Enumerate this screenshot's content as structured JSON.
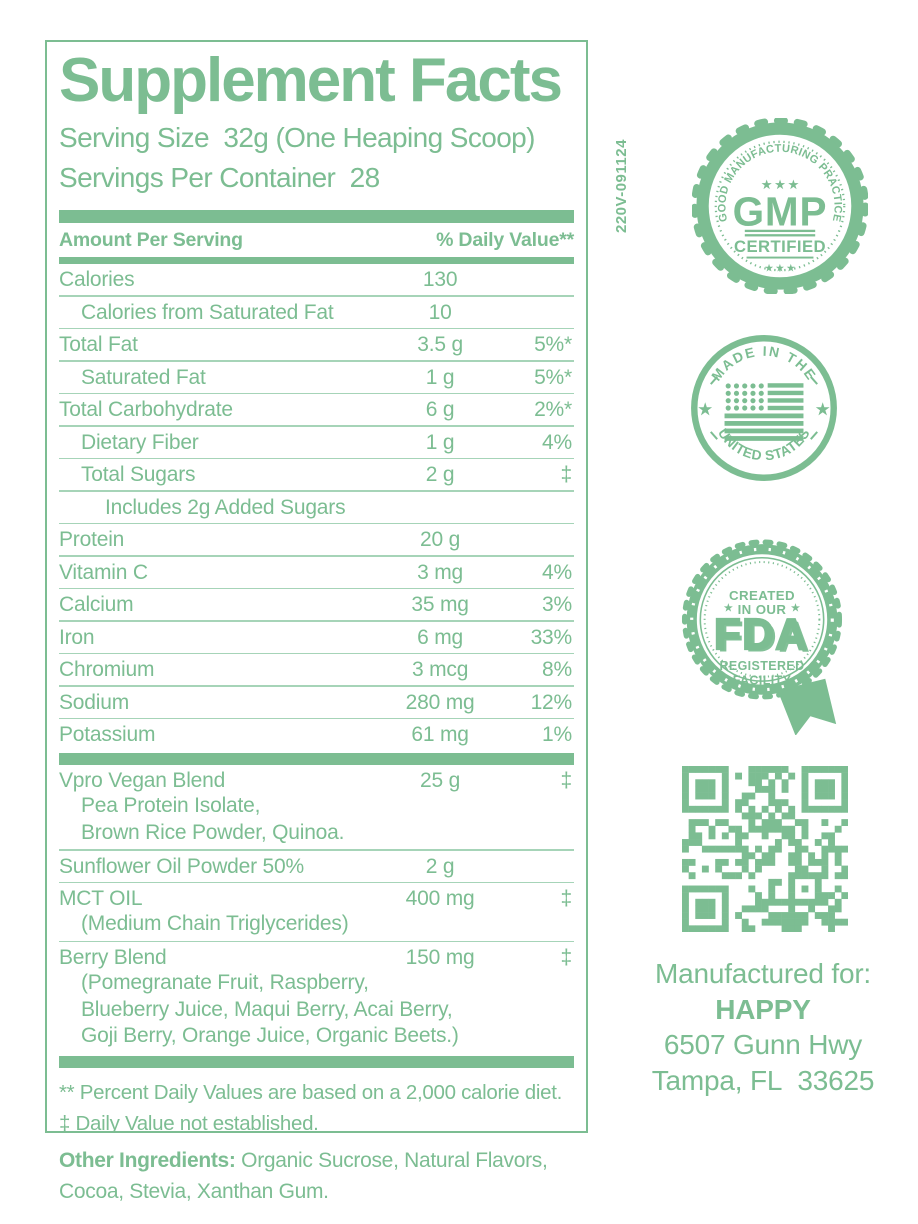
{
  "colors": {
    "green": "#7cbd92",
    "green_light": "#a6d4b8"
  },
  "glyphs": {
    "stars3": "★ ★ ★",
    "star": "★"
  },
  "label": {
    "title": "Supplement Facts",
    "serving_size_line": "Serving Size  32g (One Heaping Scoop)",
    "servings_line": "Servings Per Container  28",
    "header": {
      "left": "Amount Per Serving",
      "right": "% Daily Value**"
    },
    "rows": [
      {
        "name": "Calories",
        "amount": "130",
        "dv": "",
        "indent": 0,
        "sep": "hair"
      },
      {
        "name": "Calories from Saturated Fat",
        "amount": "10",
        "dv": "",
        "indent": 1,
        "sep": "hair"
      },
      {
        "name": "Total Fat",
        "amount": "3.5 g",
        "dv": "5%*",
        "indent": 0,
        "sep": "hair"
      },
      {
        "name": "Saturated Fat",
        "amount": "1 g",
        "dv": "5%*",
        "indent": 1,
        "sep": "hair"
      },
      {
        "name": "Total Carbohydrate",
        "amount": "6 g",
        "dv": "2%*",
        "indent": 0,
        "sep": "hair"
      },
      {
        "name": "Dietary Fiber",
        "amount": "1 g",
        "dv": "4%",
        "indent": 1,
        "sep": "hair"
      },
      {
        "name": "Total Sugars",
        "amount": "2 g",
        "dv": "‡",
        "indent": 1,
        "sep": "hair"
      },
      {
        "name": "Includes 2g Added Sugars",
        "amount": "",
        "dv": "",
        "indent": 2,
        "sep": "hair"
      },
      {
        "name": "Protein",
        "amount": "20 g",
        "dv": "",
        "indent": 0,
        "sep": "hair"
      },
      {
        "name": "Vitamin C",
        "amount": "3 mg",
        "dv": "4%",
        "indent": 0,
        "sep": "hair"
      },
      {
        "name": "Calcium",
        "amount": "35 mg",
        "dv": "3%",
        "indent": 0,
        "sep": "hair"
      },
      {
        "name": "Iron",
        "amount": "6 mg",
        "dv": "33%",
        "indent": 0,
        "sep": "hair"
      },
      {
        "name": "Chromium",
        "amount": "3 mcg",
        "dv": "8%",
        "indent": 0,
        "sep": "hair"
      },
      {
        "name": "Sodium",
        "amount": "280 mg",
        "dv": "12%",
        "indent": 0,
        "sep": "hair"
      },
      {
        "name": "Potassium",
        "amount": "61 mg",
        "dv": "1%",
        "indent": 0,
        "sep": "thick"
      },
      {
        "name": "Vpro Vegan Blend",
        "amount": "25 g",
        "dv": "‡",
        "indent": 0,
        "sub": [
          "Pea Protein Isolate,",
          "Brown Rice Powder, Quinoa."
        ],
        "sep": "hair"
      },
      {
        "name": "Sunflower Oil Powder 50%",
        "amount": "2 g",
        "dv": "",
        "indent": 0,
        "sep": "hair"
      },
      {
        "name": "MCT OIL",
        "amount": "400 mg",
        "dv": "‡",
        "indent": 0,
        "sub": [
          "(Medium Chain Triglycerides)"
        ],
        "sep": "hair"
      },
      {
        "name": "Berry Blend",
        "amount": "150 mg",
        "dv": "‡",
        "indent": 0,
        "sub": [
          "(Pomegranate Fruit, Raspberry,",
          "Blueberry Juice, Maqui Berry, Acai Berry,",
          "Goji Berry, Orange Juice, Organic Beets.)"
        ],
        "sep": "thick"
      }
    ],
    "footnotes": [
      "** Percent Daily Values are based on a 2,000 calorie diet.",
      "‡ Daily Value not established."
    ],
    "other_ingredients": {
      "label": "Other Ingredients:",
      "text": " Organic Sucrose, Natural Flavors, Cocoa, Stevia, Xanthan Gum."
    }
  },
  "side": {
    "lot_code": "220V-091124",
    "badges": {
      "gmp": {
        "arc_text": "GOOD MANUFACTURING PRACTICE",
        "center": "GMP",
        "sub": "CERTIFIED"
      },
      "usa": {
        "top": "MADE IN THE",
        "bottom": "UNITED STATES"
      },
      "fda": {
        "top1": "CREATED",
        "top2": "IN OUR",
        "center": "FDA",
        "bottom1": "REGISTERED",
        "bottom2": "FACILITY"
      }
    },
    "manufactured": {
      "intro": "Manufactured for:",
      "brand": "HAPPY",
      "address1": "6507 Gunn Hwy",
      "address2": "Tampa, FL  33625"
    }
  }
}
